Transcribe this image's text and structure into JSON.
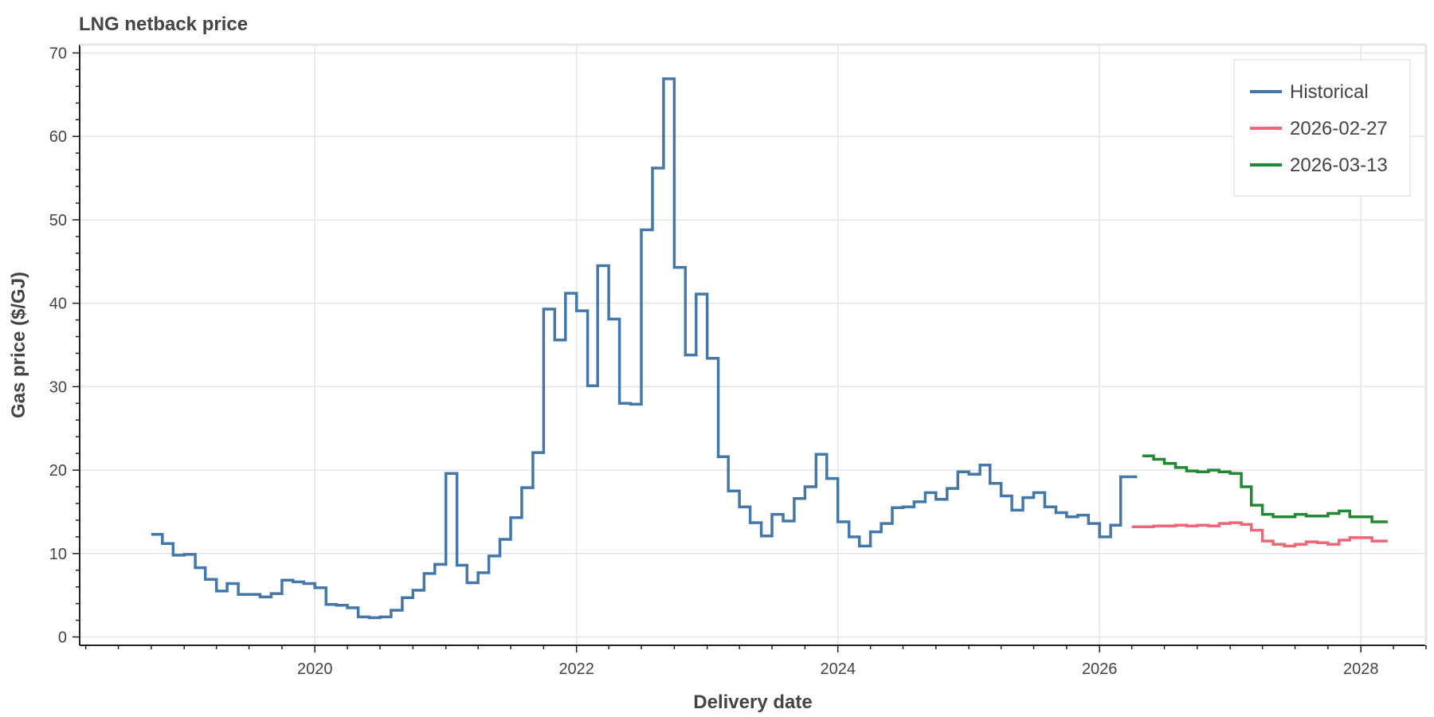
{
  "chart_data": {
    "type": "line",
    "step": true,
    "title": "LNG netback price",
    "xlabel": "Delivery date",
    "ylabel": "Gas price ($/GJ)",
    "xlim": [
      "2018-03-15",
      "2028-07-01"
    ],
    "ylim": [
      -1,
      71
    ],
    "x_ticks": [
      "2020-01-01",
      "2022-01-01",
      "2024-01-01",
      "2026-01-01",
      "2028-01-01"
    ],
    "x_tick_labels": [
      "2020",
      "2022",
      "2024",
      "2026",
      "2028"
    ],
    "y_ticks": [
      0,
      10,
      20,
      30,
      40,
      50,
      60,
      70
    ],
    "y_tick_labels": [
      "0",
      "10",
      "20",
      "30",
      "40",
      "50",
      "60",
      "70"
    ],
    "grid": true,
    "legend_position": "top-right",
    "colors": {
      "historical": "#4477aa",
      "forecast_1": "#ee6677",
      "forecast_2": "#228833"
    },
    "series": [
      {
        "name": "Historical",
        "color": "#4477aa",
        "x": [
          "2018-10-01",
          "2018-11-01",
          "2018-12-01",
          "2019-01-01",
          "2019-02-01",
          "2019-03-01",
          "2019-04-01",
          "2019-05-01",
          "2019-06-01",
          "2019-07-01",
          "2019-08-01",
          "2019-09-01",
          "2019-10-01",
          "2019-11-01",
          "2019-12-01",
          "2020-01-01",
          "2020-02-01",
          "2020-03-01",
          "2020-04-01",
          "2020-05-01",
          "2020-06-01",
          "2020-07-01",
          "2020-08-01",
          "2020-09-01",
          "2020-10-01",
          "2020-11-01",
          "2020-12-01",
          "2021-01-01",
          "2021-02-01",
          "2021-03-01",
          "2021-04-01",
          "2021-05-01",
          "2021-06-01",
          "2021-07-01",
          "2021-08-01",
          "2021-09-01",
          "2021-10-01",
          "2021-11-01",
          "2021-12-01",
          "2022-01-01",
          "2022-02-01",
          "2022-03-01",
          "2022-04-01",
          "2022-05-01",
          "2022-06-01",
          "2022-07-01",
          "2022-08-01",
          "2022-09-01",
          "2022-10-01",
          "2022-11-01",
          "2022-12-01",
          "2023-01-01",
          "2023-02-01",
          "2023-03-01",
          "2023-04-01",
          "2023-05-01",
          "2023-06-01",
          "2023-07-01",
          "2023-08-01",
          "2023-09-01",
          "2023-10-01",
          "2023-11-01",
          "2023-12-01",
          "2024-01-01",
          "2024-02-01",
          "2024-03-01",
          "2024-04-01",
          "2024-05-01",
          "2024-06-01",
          "2024-07-01",
          "2024-08-01",
          "2024-09-01",
          "2024-10-01",
          "2024-11-01",
          "2024-12-01",
          "2025-01-01",
          "2025-02-01",
          "2025-03-01",
          "2025-04-01",
          "2025-05-01",
          "2025-06-01",
          "2025-07-01",
          "2025-08-01",
          "2025-09-01",
          "2025-10-01",
          "2025-11-01",
          "2025-12-01",
          "2026-01-01",
          "2026-02-01",
          "2026-03-01",
          "2026-04-01"
        ],
        "values": [
          12.3,
          11.2,
          9.8,
          9.9,
          8.3,
          6.9,
          5.5,
          6.4,
          5.1,
          5.1,
          4.8,
          5.2,
          6.8,
          6.6,
          6.4,
          5.9,
          3.9,
          3.8,
          3.5,
          2.4,
          2.3,
          2.4,
          3.2,
          4.7,
          5.6,
          7.6,
          8.7,
          19.6,
          8.6,
          6.5,
          7.7,
          9.7,
          11.7,
          14.3,
          17.9,
          22.1,
          39.3,
          35.6,
          41.2,
          39.1,
          30.1,
          44.5,
          38.1,
          28.0,
          27.9,
          48.8,
          56.2,
          66.9,
          44.3,
          33.8,
          41.1,
          33.4,
          21.6,
          17.5,
          15.6,
          13.7,
          12.1,
          14.7,
          13.9,
          16.6,
          18.0,
          21.9,
          19.0,
          13.8,
          12.0,
          10.9,
          12.6,
          13.6,
          15.5,
          15.6,
          16.2,
          17.3,
          16.5,
          17.8,
          19.8,
          19.5,
          20.6,
          18.4,
          16.9,
          15.2,
          16.7,
          17.3,
          15.6,
          14.9,
          14.4,
          14.6,
          13.6,
          12.0,
          13.4,
          19.2,
          19.2
        ]
      },
      {
        "name": "2026-02-27",
        "color": "#ee6677",
        "x": [
          "2026-04-01",
          "2026-05-01",
          "2026-06-01",
          "2026-07-01",
          "2026-08-01",
          "2026-09-01",
          "2026-10-01",
          "2026-11-01",
          "2026-12-01",
          "2027-01-01",
          "2027-02-01",
          "2027-03-01",
          "2027-04-01",
          "2027-05-01",
          "2027-06-01",
          "2027-07-01",
          "2027-08-01",
          "2027-09-01",
          "2027-10-01",
          "2027-11-01",
          "2027-12-01",
          "2028-01-01",
          "2028-02-01",
          "2028-03-01"
        ],
        "values": [
          13.2,
          13.2,
          13.3,
          13.3,
          13.4,
          13.3,
          13.4,
          13.3,
          13.6,
          13.7,
          13.5,
          12.8,
          11.5,
          11.1,
          10.9,
          11.1,
          11.4,
          11.3,
          11.1,
          11.6,
          11.9,
          11.9,
          11.5,
          11.5
        ]
      },
      {
        "name": "2026-03-13",
        "color": "#228833",
        "x": [
          "2026-05-01",
          "2026-06-01",
          "2026-07-01",
          "2026-08-01",
          "2026-09-01",
          "2026-10-01",
          "2026-11-01",
          "2026-12-01",
          "2027-01-01",
          "2027-02-01",
          "2027-03-01",
          "2027-04-01",
          "2027-05-01",
          "2027-06-01",
          "2027-07-01",
          "2027-08-01",
          "2027-09-01",
          "2027-10-01",
          "2027-11-01",
          "2027-12-01",
          "2028-01-01",
          "2028-02-01",
          "2028-03-01"
        ],
        "values": [
          21.7,
          21.3,
          20.8,
          20.3,
          19.9,
          19.8,
          20.0,
          19.8,
          19.6,
          18.0,
          15.8,
          14.7,
          14.4,
          14.4,
          14.7,
          14.5,
          14.5,
          14.8,
          15.1,
          14.4,
          14.4,
          13.8,
          13.8
        ]
      }
    ]
  }
}
